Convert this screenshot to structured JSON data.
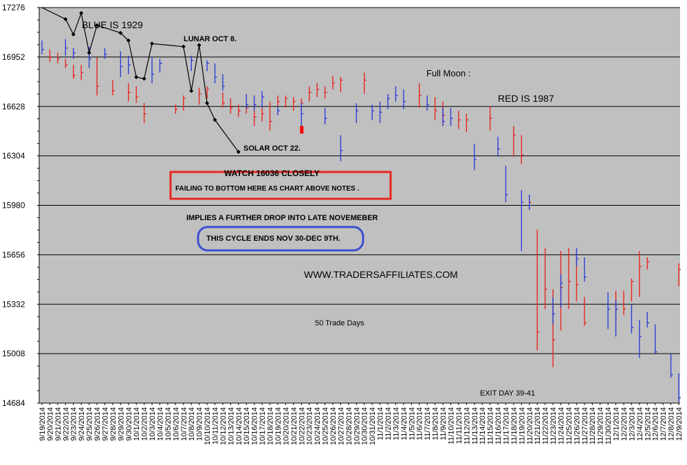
{
  "chart_data": {
    "type": "bar",
    "subtype": "ohlc",
    "y_ticks": [
      14684,
      15008,
      15332,
      15656,
      15980,
      16304,
      16628,
      16952,
      17276
    ],
    "ylim": [
      14684,
      17276
    ],
    "grid": true,
    "x_labels": [
      "9/19/2014",
      "9/20/2014",
      "9/21/2014",
      "9/22/2014",
      "9/23/2014",
      "9/24/2014",
      "9/25/2014",
      "9/26/2014",
      "9/27/2014",
      "9/28/2014",
      "9/29/2014",
      "9/30/2014",
      "10/1/2014",
      "10/2/2014",
      "10/3/2014",
      "10/4/2014",
      "10/5/2014",
      "10/6/2014",
      "10/7/2014",
      "10/8/2014",
      "10/9/2014",
      "10/10/2014",
      "10/11/2014",
      "10/12/2014",
      "10/13/2014",
      "10/14/2014",
      "10/15/2014",
      "10/16/2014",
      "10/17/2014",
      "10/18/2014",
      "10/19/2014",
      "10/20/2014",
      "10/21/2014",
      "10/22/2014",
      "10/23/2014",
      "10/24/2014",
      "10/25/2014",
      "10/26/2014",
      "10/27/2014",
      "10/28/2014",
      "10/29/2014",
      "10/30/2014",
      "10/31/2014",
      "11/1/2014",
      "11/2/2014",
      "11/3/2014",
      "11/4/2014",
      "11/5/2014",
      "11/6/2014",
      "11/7/2014",
      "11/8/2014",
      "11/9/2014",
      "11/10/2014",
      "11/11/2014",
      "11/12/2014",
      "11/13/2014",
      "11/14/2014",
      "11/15/2014",
      "11/16/2014",
      "11/17/2014",
      "11/18/2014",
      "11/19/2014",
      "11/20/2014",
      "11/21/2014",
      "11/22/2014",
      "11/23/2014",
      "11/24/2014",
      "11/25/2014",
      "11/26/2014",
      "11/27/2014",
      "11/28/2014",
      "11/29/2014",
      "11/30/2014",
      "12/1/2014",
      "12/2/2014",
      "12/3/2014",
      "12/4/2014",
      "12/5/2014",
      "12/6/2014",
      "12/7/2014",
      "12/8/2014",
      "12/9/2014"
    ],
    "series": [
      {
        "color": "#e8261e",
        "bars": [
          {
            "i": 1,
            "high": 17000,
            "low": 16920,
            "close": 16950
          },
          {
            "i": 2,
            "high": 16980,
            "low": 16910,
            "close": 16940
          },
          {
            "i": 3,
            "high": 16940,
            "low": 16880,
            "close": 16900
          },
          {
            "i": 4,
            "high": 16900,
            "low": 16810,
            "close": 16830
          },
          {
            "i": 5,
            "high": 16900,
            "low": 16800,
            "close": 16850
          },
          {
            "i": 7,
            "high": 16950,
            "low": 16700,
            "close": 16760
          },
          {
            "i": 9,
            "high": 16800,
            "low": 16700,
            "close": 16730
          },
          {
            "i": 11,
            "high": 16780,
            "low": 16660,
            "close": 16720
          },
          {
            "i": 12,
            "high": 16760,
            "low": 16650,
            "close": 16690
          },
          {
            "i": 13,
            "high": 16650,
            "low": 16520,
            "close": 16580
          },
          {
            "i": 17,
            "high": 16640,
            "low": 16580,
            "close": 16610
          },
          {
            "i": 18,
            "high": 16700,
            "low": 16600,
            "close": 16680
          },
          {
            "i": 20,
            "high": 16750,
            "low": 16640,
            "close": 16710
          },
          {
            "i": 21,
            "high": 16760,
            "low": 16680,
            "close": 16740
          },
          {
            "i": 23,
            "high": 16720,
            "low": 16620,
            "close": 16650
          },
          {
            "i": 24,
            "high": 16680,
            "low": 16580,
            "close": 16620
          },
          {
            "i": 25,
            "high": 16640,
            "low": 16560,
            "close": 16600
          },
          {
            "i": 26,
            "high": 16660,
            "low": 16580,
            "close": 16620
          },
          {
            "i": 27,
            "high": 16640,
            "low": 16500,
            "close": 16560
          },
          {
            "i": 28,
            "high": 16620,
            "low": 16530,
            "close": 16580
          },
          {
            "i": 29,
            "high": 16660,
            "low": 16470,
            "close": 16530
          },
          {
            "i": 30,
            "high": 16700,
            "low": 16620,
            "close": 16660
          },
          {
            "i": 31,
            "high": 16700,
            "low": 16620,
            "close": 16680
          },
          {
            "i": 32,
            "high": 16690,
            "low": 16600,
            "close": 16660
          },
          {
            "i": 33,
            "high": 16680,
            "low": 16590,
            "close": 16650
          },
          {
            "i": 34,
            "high": 16760,
            "low": 16660,
            "close": 16720
          },
          {
            "i": 35,
            "high": 16780,
            "low": 16690,
            "close": 16740
          },
          {
            "i": 36,
            "high": 16760,
            "low": 16680,
            "close": 16720
          },
          {
            "i": 37,
            "high": 16830,
            "low": 16740,
            "close": 16780
          },
          {
            "i": 38,
            "high": 16820,
            "low": 16720,
            "close": 16800
          },
          {
            "i": 41,
            "high": 16850,
            "low": 16710,
            "close": 16800
          },
          {
            "i": 48,
            "high": 16780,
            "low": 16620,
            "close": 16700
          },
          {
            "i": 50,
            "high": 16690,
            "low": 16540,
            "close": 16600
          },
          {
            "i": 51,
            "high": 16660,
            "low": 16500,
            "close": 16570
          },
          {
            "i": 53,
            "high": 16600,
            "low": 16480,
            "close": 16540
          },
          {
            "i": 54,
            "high": 16580,
            "low": 16460,
            "close": 16540
          },
          {
            "i": 57,
            "high": 16630,
            "low": 16470,
            "close": 16550
          },
          {
            "i": 60,
            "high": 16500,
            "low": 16300,
            "close": 16440
          },
          {
            "i": 61,
            "high": 16440,
            "low": 16250,
            "close": 16310
          },
          {
            "i": 62,
            "high": 16050,
            "low": 15950,
            "close": 16000
          },
          {
            "i": 63,
            "high": 15820,
            "low": 15030,
            "close": 15150
          },
          {
            "i": 64,
            "high": 15700,
            "low": 15300,
            "close": 15430
          },
          {
            "i": 65,
            "high": 15430,
            "low": 14920,
            "close": 15100
          },
          {
            "i": 66,
            "high": 15680,
            "low": 15160,
            "close": 15440
          },
          {
            "i": 67,
            "high": 15700,
            "low": 15300,
            "close": 15480
          },
          {
            "i": 68,
            "high": 15640,
            "low": 15350,
            "close": 15460
          },
          {
            "i": 69,
            "high": 15380,
            "low": 15190,
            "close": 15210
          },
          {
            "i": 73,
            "high": 15420,
            "low": 15210,
            "close": 15300
          },
          {
            "i": 74,
            "high": 15420,
            "low": 15260,
            "close": 15300
          },
          {
            "i": 75,
            "high": 15500,
            "low": 15350,
            "close": 15480
          },
          {
            "i": 76,
            "high": 15680,
            "low": 15380,
            "close": 15580
          },
          {
            "i": 77,
            "high": 15640,
            "low": 15560,
            "close": 15610
          },
          {
            "i": 81,
            "high": 15600,
            "low": 15450,
            "close": 15560
          }
        ]
      },
      {
        "color": "#2b3fd6",
        "bars": [
          {
            "i": 0,
            "high": 17060,
            "low": 16970,
            "close": 17000
          },
          {
            "i": 3,
            "high": 17070,
            "low": 16960,
            "close": 17010
          },
          {
            "i": 4,
            "high": 17010,
            "low": 16940,
            "close": 16980
          },
          {
            "i": 6,
            "high": 17020,
            "low": 16880,
            "close": 16940
          },
          {
            "i": 8,
            "high": 17010,
            "low": 16940,
            "close": 16970
          },
          {
            "i": 10,
            "high": 16990,
            "low": 16820,
            "close": 16890
          },
          {
            "i": 11,
            "high": 16960,
            "low": 16840,
            "close": 16900
          },
          {
            "i": 14,
            "high": 16950,
            "low": 16780,
            "close": 16840
          },
          {
            "i": 15,
            "high": 16940,
            "low": 16850,
            "close": 16910
          },
          {
            "i": 19,
            "high": 16960,
            "low": 16860,
            "close": 16930
          },
          {
            "i": 21,
            "high": 16930,
            "low": 16860,
            "close": 16910
          },
          {
            "i": 22,
            "high": 16910,
            "low": 16780,
            "close": 16820
          },
          {
            "i": 23,
            "high": 16840,
            "low": 16730,
            "close": 16760
          },
          {
            "i": 26,
            "high": 16710,
            "low": 16610,
            "close": 16640
          },
          {
            "i": 27,
            "high": 16700,
            "low": 16600,
            "close": 16640
          },
          {
            "i": 28,
            "high": 16730,
            "low": 16620,
            "close": 16690
          },
          {
            "i": 30,
            "high": 16630,
            "low": 16570,
            "close": 16600
          },
          {
            "i": 33,
            "high": 16650,
            "low": 16450,
            "close": 16580
          },
          {
            "i": 36,
            "high": 16620,
            "low": 16510,
            "close": 16550
          },
          {
            "i": 38,
            "high": 16440,
            "low": 16270,
            "close": 16340
          },
          {
            "i": 40,
            "high": 16650,
            "low": 16520,
            "close": 16600
          },
          {
            "i": 42,
            "high": 16640,
            "low": 16540,
            "close": 16600
          },
          {
            "i": 43,
            "high": 16660,
            "low": 16520,
            "close": 16590
          },
          {
            "i": 44,
            "high": 16710,
            "low": 16610,
            "close": 16680
          },
          {
            "i": 45,
            "high": 16760,
            "low": 16660,
            "close": 16700
          },
          {
            "i": 46,
            "high": 16740,
            "low": 16610,
            "close": 16660
          },
          {
            "i": 49,
            "high": 16700,
            "low": 16600,
            "close": 16640
          },
          {
            "i": 51,
            "high": 16620,
            "low": 16500,
            "close": 16530
          },
          {
            "i": 52,
            "high": 16620,
            "low": 16500,
            "close": 16550
          },
          {
            "i": 55,
            "high": 16380,
            "low": 16210,
            "close": 16280
          },
          {
            "i": 58,
            "high": 16430,
            "low": 16300,
            "close": 16350
          },
          {
            "i": 59,
            "high": 16240,
            "low": 16000,
            "close": 16050
          },
          {
            "i": 61,
            "high": 16080,
            "low": 15680,
            "close": 16000
          },
          {
            "i": 62,
            "high": 16050,
            "low": 15950,
            "close": 15980
          },
          {
            "i": 65,
            "high": 15380,
            "low": 15200,
            "close": 15270
          },
          {
            "i": 66,
            "high": 15530,
            "low": 15310,
            "close": 15470
          },
          {
            "i": 68,
            "high": 15700,
            "low": 15580,
            "close": 15630
          },
          {
            "i": 69,
            "high": 15640,
            "low": 15480,
            "close": 15510
          },
          {
            "i": 72,
            "high": 15410,
            "low": 15170,
            "close": 15300
          },
          {
            "i": 73,
            "high": 15360,
            "low": 15120,
            "close": 15300
          },
          {
            "i": 75,
            "high": 15330,
            "low": 15140,
            "close": 15180
          },
          {
            "i": 76,
            "high": 15230,
            "low": 14980,
            "close": 15120
          },
          {
            "i": 77,
            "high": 15280,
            "low": 15180,
            "close": 15210
          },
          {
            "i": 78,
            "high": 15200,
            "low": 15010,
            "close": 15020
          },
          {
            "i": 80,
            "high": 15010,
            "low": 14850,
            "close": 14870
          },
          {
            "i": 81,
            "high": 14880,
            "low": 14690,
            "close": 14720
          }
        ]
      }
    ],
    "overlay_1929": {
      "color": "#000000",
      "points": [
        {
          "i": 0,
          "y": 17276
        },
        {
          "i": 3,
          "y": 17200
        },
        {
          "i": 4,
          "y": 17100
        },
        {
          "i": 5,
          "y": 17240
        },
        {
          "i": 6,
          "y": 16980
        },
        {
          "i": 7,
          "y": 17160
        },
        {
          "i": 10,
          "y": 17110
        },
        {
          "i": 11,
          "y": 17060
        },
        {
          "i": 12,
          "y": 16820
        },
        {
          "i": 13,
          "y": 16810
        },
        {
          "i": 14,
          "y": 17040
        },
        {
          "i": 18,
          "y": 17020
        },
        {
          "i": 19,
          "y": 16730
        },
        {
          "i": 20,
          "y": 17030
        },
        {
          "i": 21,
          "y": 16650
        },
        {
          "i": 22,
          "y": 16540
        },
        {
          "i": 25,
          "y": 16330
        }
      ]
    },
    "event_marker": {
      "i": 33,
      "color": "#ff0000",
      "y1": 16500,
      "y2": 16450
    },
    "annotations": {
      "blue_label": "BLUE IS 1929",
      "lunar": "LUNAR OCT 8.",
      "solar": "SOLAR OCT 22.",
      "full_moon": "Full Moon :",
      "red_label": "RED IS 1987",
      "watch": "WATCH 16036 CLOSELY",
      "failing": "FAILING TO BOTTOM HERE AS CHART ABOVE NOTES .",
      "implies": "IMPLIES A FURTHER DROP INTO LATE NOVEMEBER",
      "cycle": "THIS CYCLE ENDS NOV 30-DEC 9TH.",
      "website": "WWW.TRADERSAFFILIATES.COM",
      "trade_days": "50 Trade Days",
      "exit": "EXIT DAY 39-41"
    },
    "box_colors": {
      "red": "#e8261e",
      "blue": "#3a4fd0"
    }
  }
}
